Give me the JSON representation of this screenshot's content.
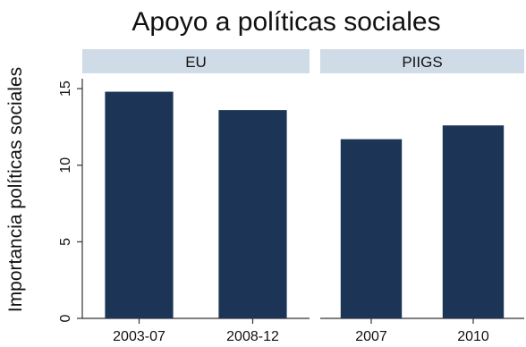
{
  "chart_data": {
    "type": "bar",
    "title": "Apoyo a políticas sociales",
    "ylabel": "Importancia políticas sociales",
    "xlabel": "",
    "ylim": [
      0,
      16
    ],
    "yticks": [
      "0",
      "5",
      "10",
      "15"
    ],
    "bar_color": "#1c3557",
    "panel_header_color": "#cfdbe6",
    "axis_color": "#333333",
    "panels": [
      {
        "title": "EU",
        "categories": [
          "2003-07",
          "2008-12"
        ],
        "values": [
          14.8,
          13.6
        ]
      },
      {
        "title": "PIIGS",
        "categories": [
          "2007",
          "2010"
        ],
        "values": [
          11.7,
          12.6
        ]
      }
    ]
  }
}
